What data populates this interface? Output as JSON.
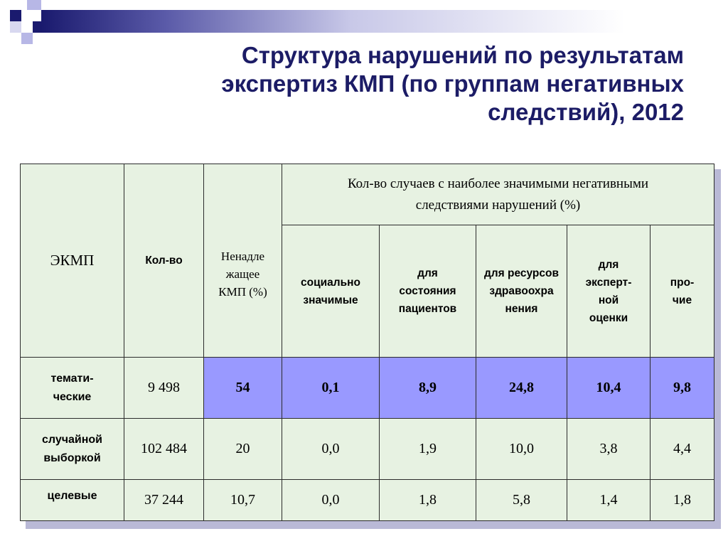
{
  "title": {
    "line1": "Структура нарушений по результатам",
    "line2": "экспертиз КМП (по группам негативных",
    "line3": "следствий), 2012"
  },
  "table": {
    "headers": {
      "ekmp": "ЭКМП",
      "count": "Кол-во",
      "improper": "Ненадле жащее КМП (%)",
      "group": "Кол-во случаев с наиболее значимыми негативными следствиями нарушений (%)",
      "social": "социально значимые",
      "patients": "для состояния пациентов",
      "resources": "для ресурсов здравоохра нения",
      "expert": "для эксперт-ной оценки",
      "other": "про-чие"
    },
    "rows": [
      {
        "label": "темати-ческие",
        "count": "9 498",
        "improper": "54",
        "social": "0,1",
        "patients": "8,9",
        "resources": "24,8",
        "expert": "10,4",
        "other": "9,8"
      },
      {
        "label": "случайной выборкой",
        "count": "102 484",
        "improper": "20",
        "social": "0,0",
        "patients": "1,9",
        "resources": "10,0",
        "expert": "3,8",
        "other": "4,4"
      },
      {
        "label": "целевые",
        "count": "37 244",
        "improper": "10,7",
        "social": "0,0",
        "patients": "1,8",
        "resources": "5,8",
        "expert": "1,4",
        "other": "1,8"
      }
    ]
  },
  "colors": {
    "title": "#1c1c66",
    "table_bg": "#e7f2e2",
    "highlight_row": "#9999ff",
    "accent_navy": "#1a1a6e"
  }
}
